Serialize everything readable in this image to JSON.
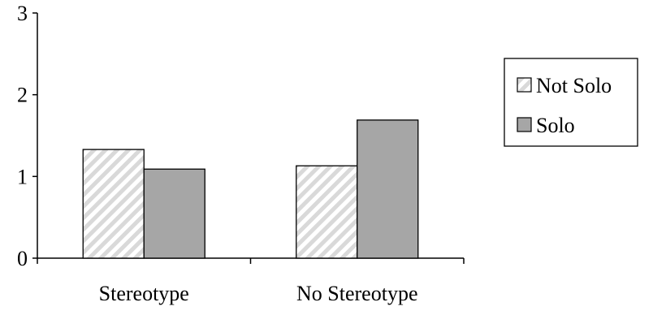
{
  "chart_data": {
    "type": "bar",
    "title": "",
    "xlabel": "",
    "ylabel": "",
    "categories": [
      "Stereotype",
      "No Stereotype"
    ],
    "series": [
      {
        "name": "Not Solo",
        "values": [
          1.33,
          1.13
        ],
        "fill": "hatched",
        "color": "#d9d9d9"
      },
      {
        "name": "Solo",
        "values": [
          1.09,
          1.69
        ],
        "fill": "solid",
        "color": "#a6a6a6"
      }
    ],
    "ylim": [
      0,
      3
    ],
    "yticks": [
      "0",
      "1",
      "2",
      "3"
    ],
    "grid": false,
    "legend_position": "right"
  }
}
